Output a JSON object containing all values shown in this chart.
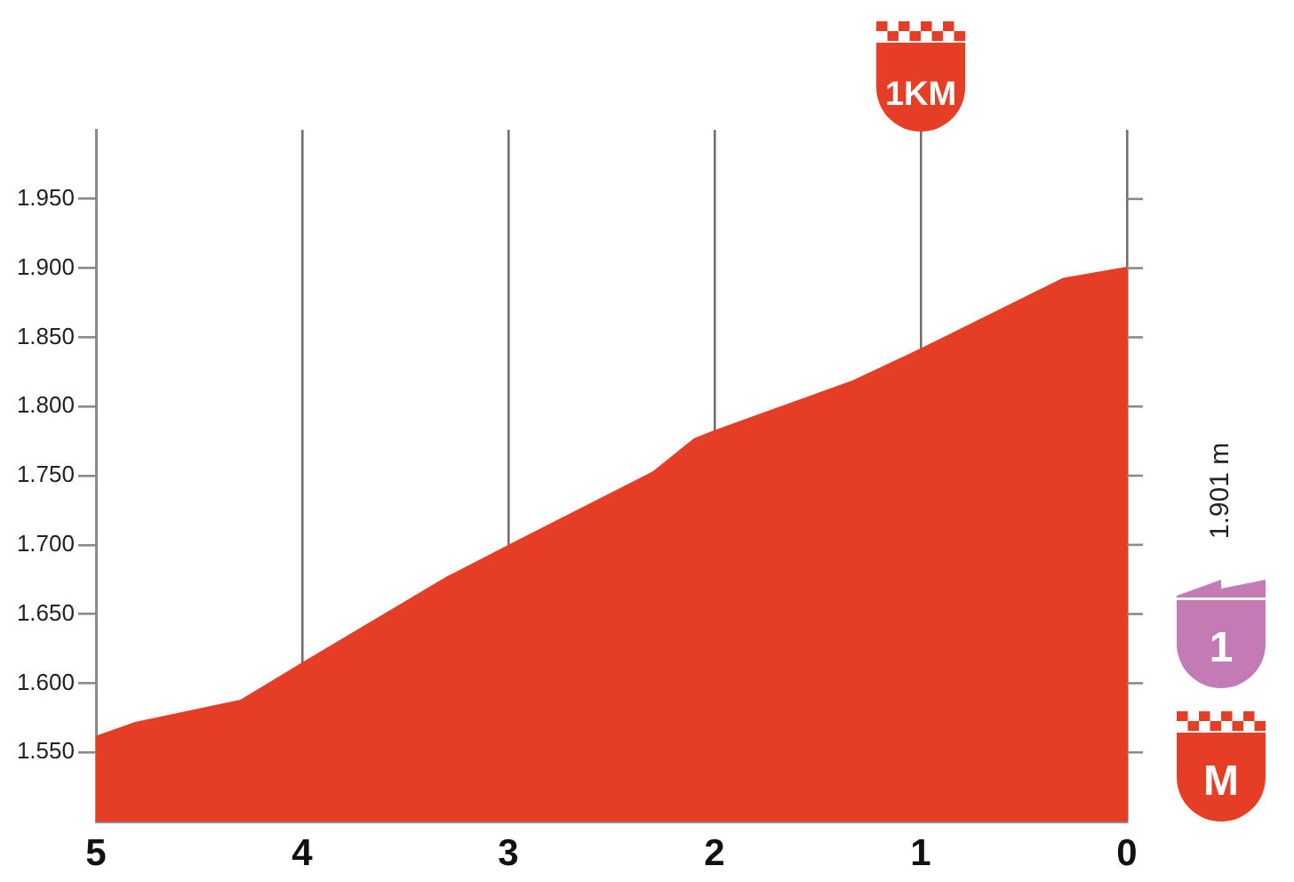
{
  "chart_data": {
    "type": "area",
    "x": [
      5,
      4.81,
      4.3,
      4,
      3.3,
      3,
      2.3,
      2.1,
      2,
      1.33,
      1,
      0.31,
      0
    ],
    "values": [
      1562,
      1572,
      1588,
      1615,
      1677,
      1700,
      1753,
      1777,
      1783,
      1819,
      1842,
      1893,
      1901
    ],
    "color": "#e63e25",
    "xlim": [
      5,
      0
    ],
    "xticks": [
      5,
      4,
      3,
      2,
      1,
      0
    ],
    "ylim": [
      1500,
      2000
    ],
    "yticks": [
      {
        "value": 1550,
        "label": "1.550"
      },
      {
        "value": 1600,
        "label": "1.600"
      },
      {
        "value": 1650,
        "label": "1.650"
      },
      {
        "value": 1700,
        "label": "1.700"
      },
      {
        "value": 1750,
        "label": "1.750"
      },
      {
        "value": 1800,
        "label": "1.800"
      },
      {
        "value": 1850,
        "label": "1.850"
      },
      {
        "value": 1900,
        "label": "1.900"
      },
      {
        "value": 1950,
        "label": "1.950"
      }
    ],
    "grid": "x",
    "annotations": [
      "1KM",
      "1.901 m",
      "1",
      "M"
    ]
  }
}
